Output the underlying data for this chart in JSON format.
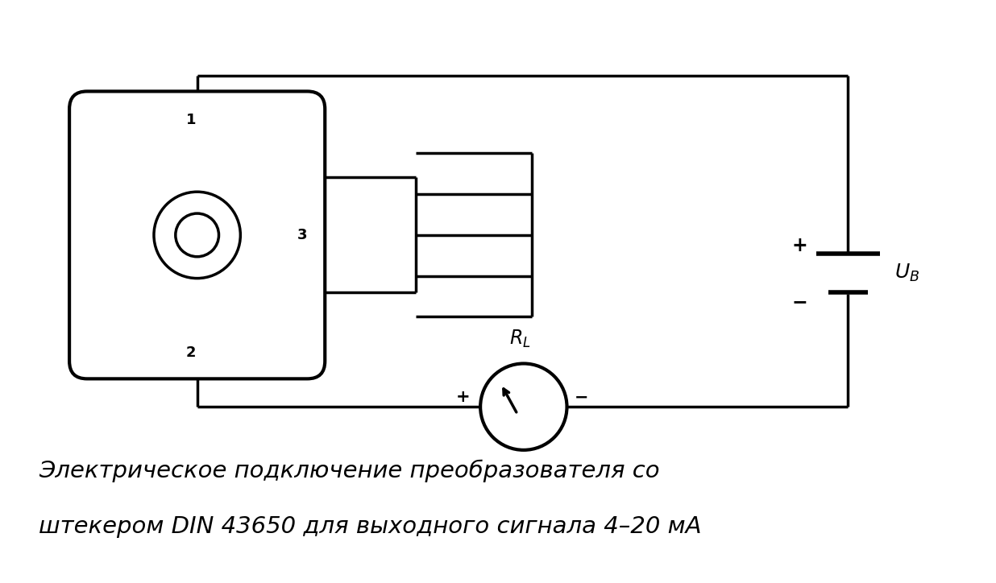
{
  "bg_color": "#ffffff",
  "lc": "#000000",
  "lw": 2.5,
  "caption_line1": "Электрическое подключение преобразователя со",
  "caption_line2": "штекером DIN 43650 для выходного сигнала 4–20 мА",
  "caption_fontsize": 21,
  "fig_width": 12.36,
  "fig_height": 7.24
}
